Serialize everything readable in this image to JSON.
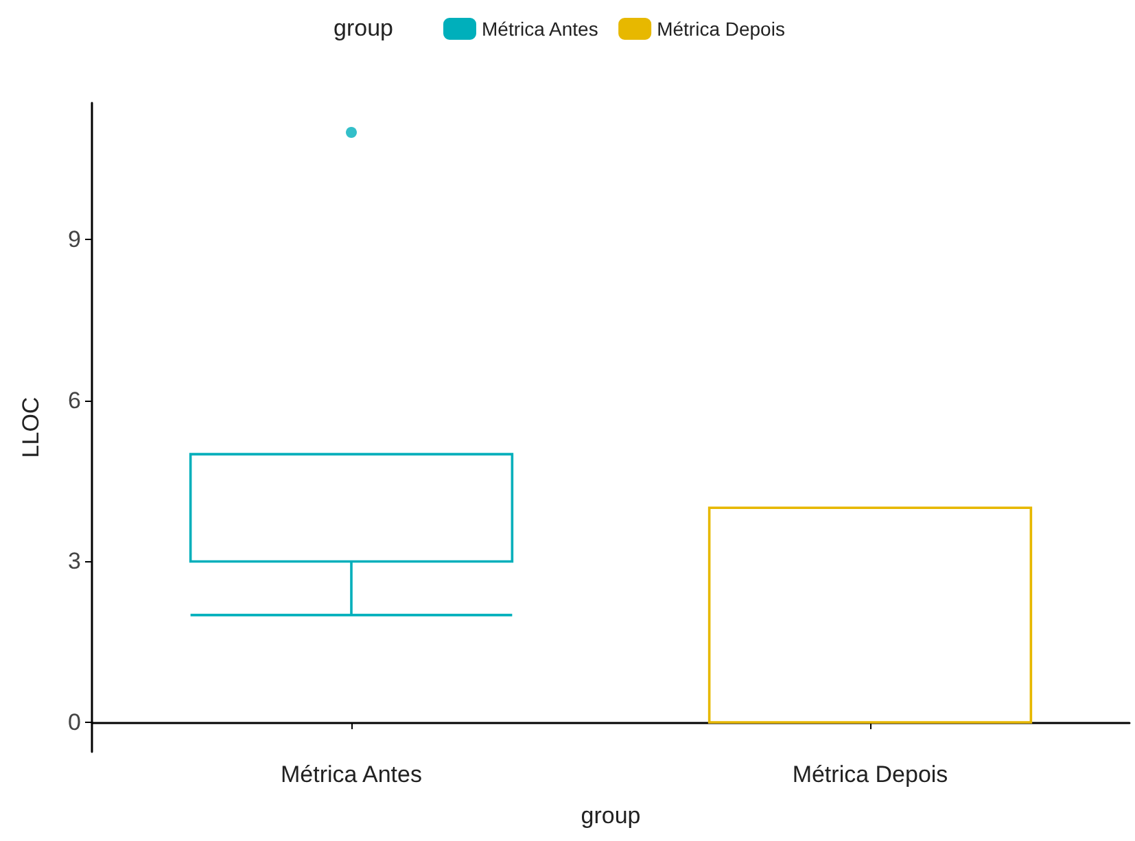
{
  "chart_data": {
    "type": "box",
    "categories": [
      "Métrica Antes",
      "Métrica Depois"
    ],
    "xlabel": "group",
    "ylabel": "LLOC",
    "legend_title": "group",
    "legend": "top",
    "grid": false,
    "ylim": [
      -0.55,
      11.55
    ],
    "yticks": [
      0,
      3,
      6,
      9
    ],
    "series": [
      {
        "name": "Métrica Antes",
        "color": "#00afbb",
        "boxes": [
          {
            "low": 2,
            "q1": 3,
            "median": 5,
            "q3": 5,
            "high": 5,
            "outliers": [
              11
            ]
          },
          null
        ]
      },
      {
        "name": "Métrica Depois",
        "color": "#e7b800",
        "boxes": [
          null,
          {
            "low": 0,
            "q1": 0,
            "median": 4,
            "q3": 4,
            "high": 4
          }
        ]
      }
    ]
  }
}
